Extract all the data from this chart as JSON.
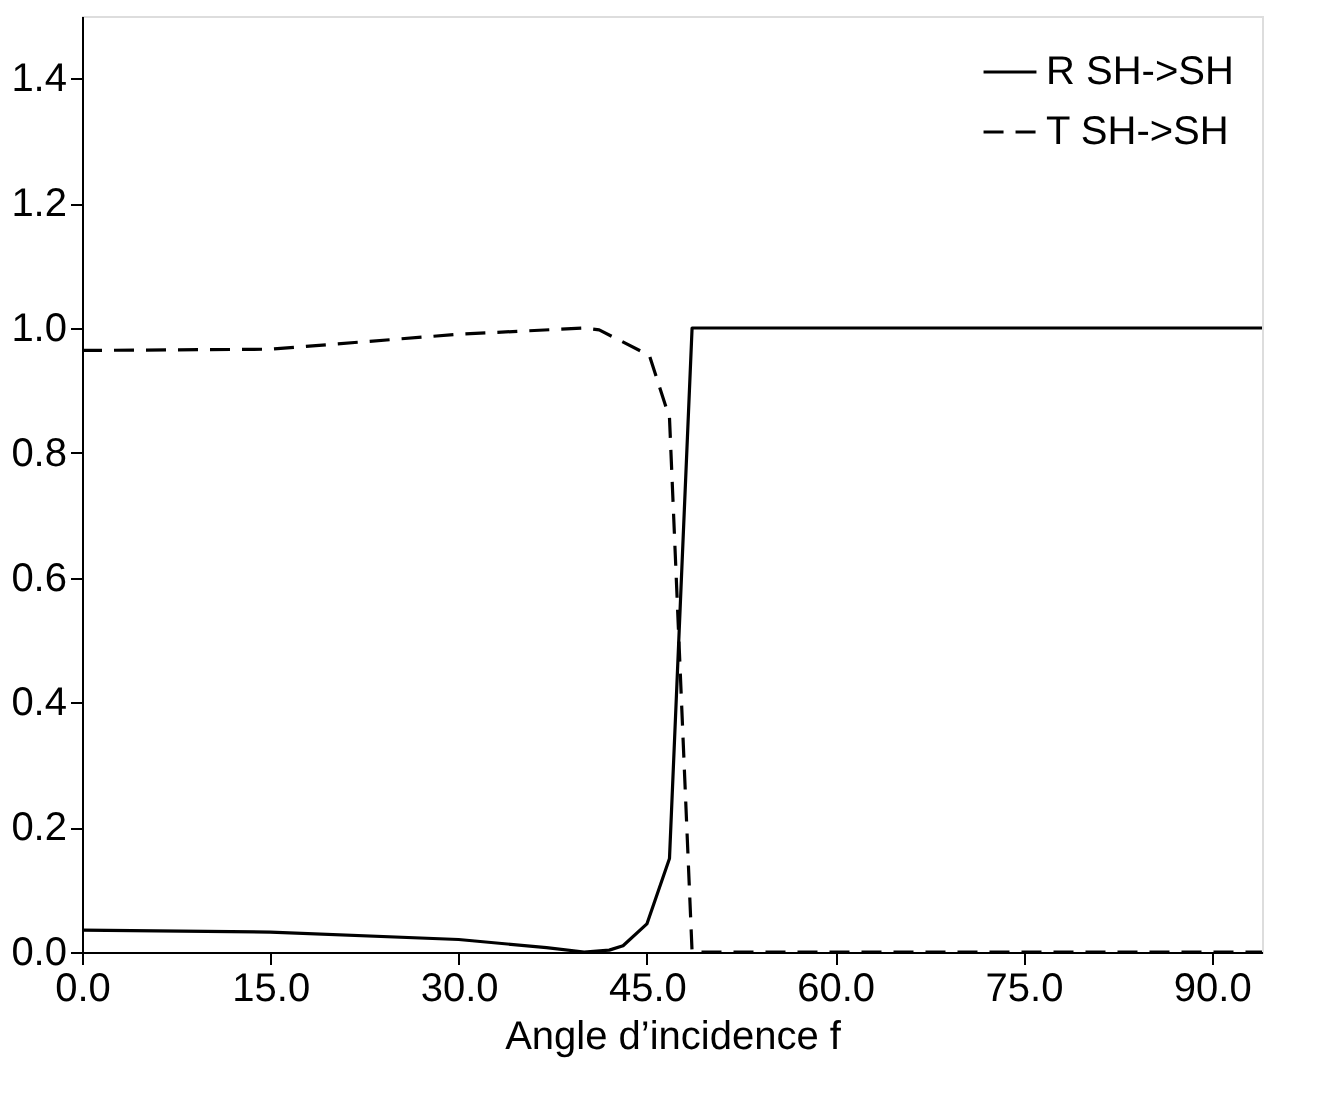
{
  "chart_data": {
    "type": "line",
    "xlabel": "Angle d’incidence f",
    "xlim": [
      0,
      94
    ],
    "xticks": [
      {
        "value": 0,
        "label": "0.0"
      },
      {
        "value": 15,
        "label": "15.0"
      },
      {
        "value": 30,
        "label": "30.0"
      },
      {
        "value": 45,
        "label": "45.0"
      },
      {
        "value": 60,
        "label": "60.0"
      },
      {
        "value": 75,
        "label": "75.0"
      },
      {
        "value": 90,
        "label": "90.0"
      }
    ],
    "ylim": [
      0,
      1.5
    ],
    "yticks": [
      {
        "value": 0,
        "label": "0.0"
      },
      {
        "value": 0.2,
        "label": "0.2"
      },
      {
        "value": 0.4,
        "label": "0.4"
      },
      {
        "value": 0.6,
        "label": "0.6"
      },
      {
        "value": 0.8,
        "label": "0.8"
      },
      {
        "value": 1.0,
        "label": "1.0"
      },
      {
        "value": 1.2,
        "label": "1.2"
      },
      {
        "value": 1.4,
        "label": "1.4"
      }
    ],
    "grid": false,
    "legend": "top right",
    "marker": "none",
    "series": [
      {
        "name": "R SH->SH",
        "color": "#000000",
        "line_style": "solid",
        "x": [
          0,
          15,
          30,
          37,
          40,
          42,
          43.1,
          45,
          46.8,
          48.6,
          94
        ],
        "values": [
          0.035,
          0.032,
          0.02,
          0.007,
          0,
          0.003,
          0.01,
          0.045,
          0.15,
          1.0,
          1.0
        ]
      },
      {
        "name": "T SH->SH",
        "color": "#000000",
        "line_style": "dashed",
        "x": [
          0,
          15,
          30,
          40,
          41.2,
          45.2,
          46.8,
          48.6,
          94
        ],
        "values": [
          0.964,
          0.966,
          0.99,
          1.0,
          0.997,
          0.956,
          0.856,
          0,
          0
        ]
      }
    ]
  }
}
